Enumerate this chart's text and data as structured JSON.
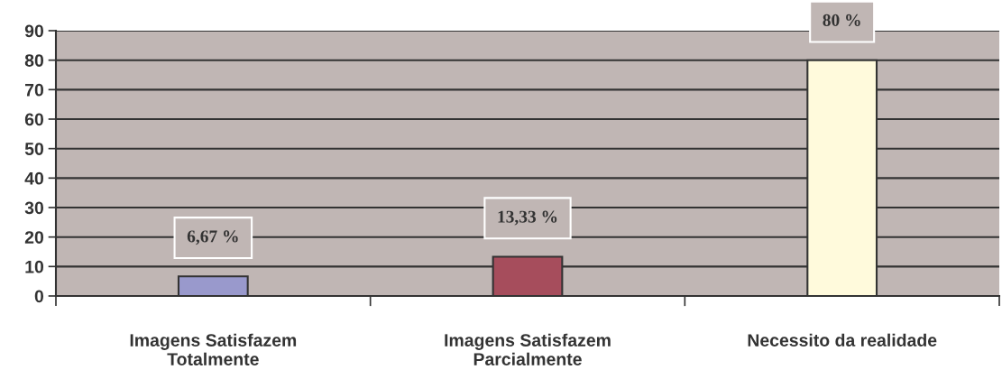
{
  "chart_data": {
    "type": "bar",
    "categories": [
      "Imagens Satisfazem\nTotalmente",
      "Imagens Satisfazem\nParcialmente",
      "Necessito da realidade"
    ],
    "values": [
      6.67,
      13.33,
      80
    ],
    "colors": [
      "#9999cc",
      "#a64d5c",
      "#fffadc"
    ],
    "value_labels": [
      "6,67 %",
      "13,33 %",
      "80 %"
    ],
    "ylim": [
      0,
      90
    ],
    "yticks": [
      0,
      10,
      20,
      30,
      40,
      50,
      60,
      70,
      80,
      90
    ],
    "grid": "y",
    "legend": false
  }
}
